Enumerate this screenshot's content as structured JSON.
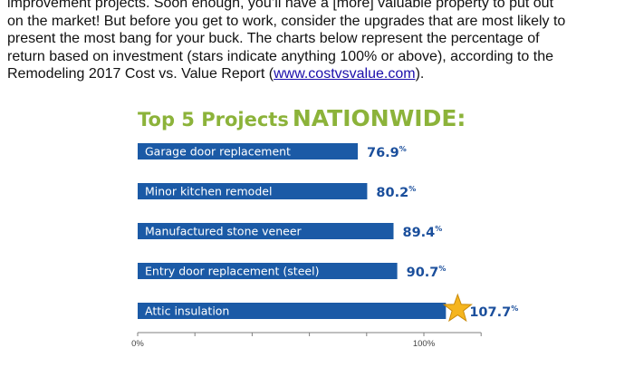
{
  "article": {
    "line1": "improvement projects. Soon enough, you’ll have a [more] valuable property to put out",
    "line2": "on the market! But before you get to work, consider the upgrades that are most likely to",
    "line3": "present the most bang for your buck. The charts below represent the percentage of",
    "line4": "return based on investment (stars indicate anything 100% or above), according to the",
    "line5_before": "Remodeling 2017 Cost vs. Value Report (",
    "link": "www.costvsvalue.com",
    "line5_after": ")."
  },
  "colors": {
    "bar": "#1b5aa6",
    "value_text": "#1b4f9c",
    "title_green": "#8cb33a",
    "star": "#f5b51e",
    "star_stroke": "#c98a0a",
    "axis": "#7f7f7f"
  },
  "chart_data": {
    "type": "bar",
    "orientation": "horizontal",
    "title_part1": "Top 5 Projects",
    "title_part2": "NATIONWIDE:",
    "categories": [
      "Garage door replacement",
      "Minor kitchen remodel",
      "Manufactured stone veneer",
      "Entry door replacement (steel)",
      "Attic insulation"
    ],
    "values": [
      76.9,
      80.2,
      89.4,
      90.7,
      107.7
    ],
    "value_labels": [
      "76.9",
      "80.2",
      "89.4",
      "90.7",
      "107.7"
    ],
    "value_suffix": "%",
    "star_threshold": 100,
    "xlim": [
      0,
      120
    ],
    "xticks": [
      0,
      100
    ],
    "xtick_labels": [
      "0%",
      "100%"
    ],
    "minor_ticks": [
      20,
      40,
      60,
      80,
      120
    ]
  }
}
